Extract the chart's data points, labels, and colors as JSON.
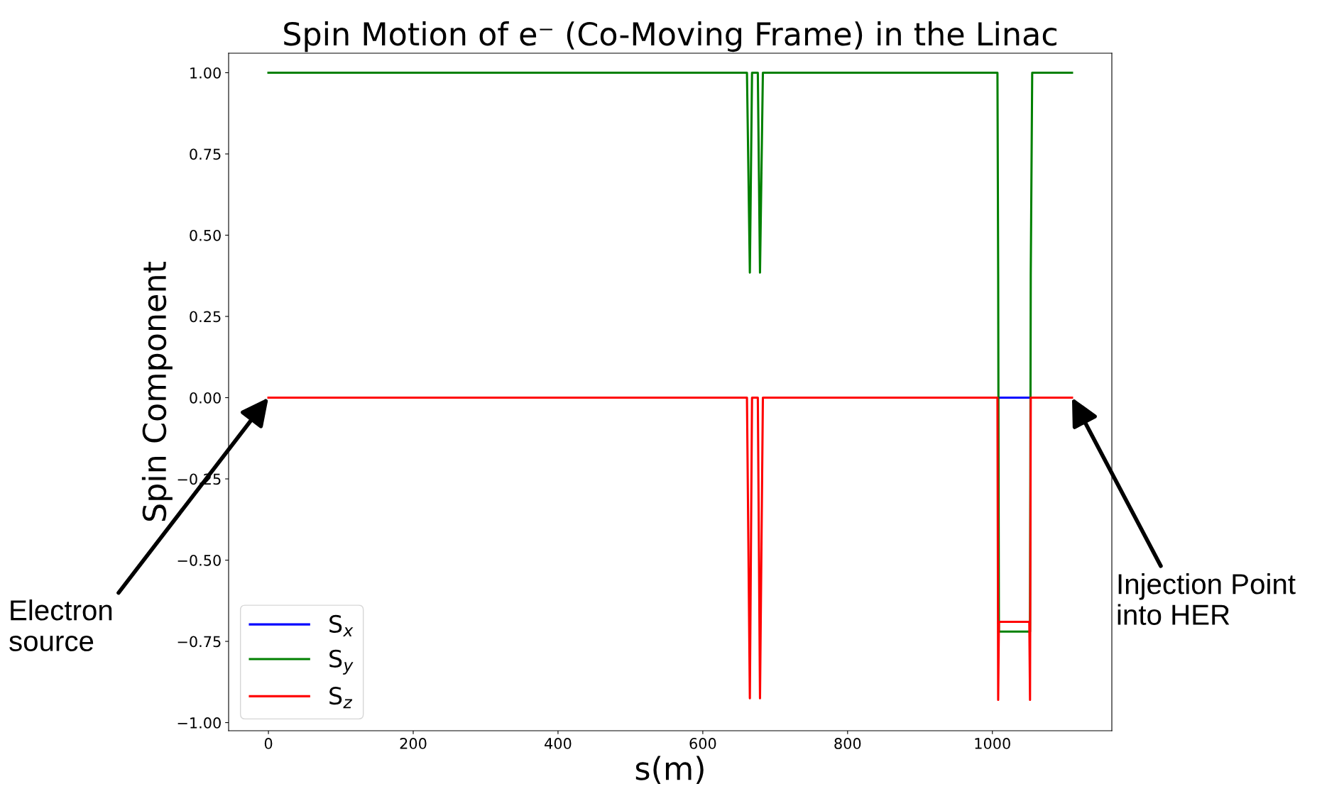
{
  "chart_data": {
    "type": "line",
    "title": "Spin Motion of e⁻ (Co-Moving Frame) in the Linac",
    "xlabel": "s(m)",
    "ylabel": "Spin Component",
    "x": [
      0,
      661,
      665,
      668,
      676,
      679,
      683,
      1007,
      1008,
      1009,
      1051,
      1052,
      1053,
      1055,
      1110
    ],
    "series": [
      {
        "name": "S$_{x}$",
        "color": "#0000ff",
        "values": [
          null,
          null,
          null,
          null,
          null,
          null,
          null,
          null,
          null,
          0,
          0,
          null,
          null,
          null,
          null
        ]
      },
      {
        "name": "S$_{y}$",
        "color": "#008000",
        "values": [
          1,
          1,
          0.385,
          1,
          1,
          0.385,
          1,
          1,
          0.38,
          -0.72,
          -0.72,
          -0.72,
          0.38,
          1,
          1
        ]
      },
      {
        "name": "S$_{z}$",
        "color": "#ff0000",
        "values": [
          0,
          0,
          -0.925,
          0,
          0,
          -0.925,
          0,
          0,
          -0.93,
          -0.69,
          -0.69,
          -0.93,
          0,
          0,
          0
        ]
      }
    ],
    "xlim": [
      -55,
      1165
    ],
    "ylim": [
      -1.025,
      1.06
    ],
    "xticks": [
      0,
      200,
      400,
      600,
      800,
      1000
    ],
    "yticks": [
      {
        "value": -1,
        "label": "−1.00"
      },
      {
        "value": -0.75,
        "label": "−0.75"
      },
      {
        "value": -0.5,
        "label": "−0.50"
      },
      {
        "value": -0.25,
        "label": "−0.25"
      },
      {
        "value": 0,
        "label": "0.00"
      },
      {
        "value": 0.25,
        "label": "0.25"
      },
      {
        "value": 0.5,
        "label": "0.50"
      },
      {
        "value": 0.75,
        "label": "0.75"
      },
      {
        "value": 1,
        "label": "1.00"
      }
    ],
    "grid": false,
    "legend": "bottom left",
    "annotations": [
      {
        "text": "Electron\nsource",
        "x": 0,
        "y": 0
      },
      {
        "text": "Injection Point\ninto HER",
        "x": 1110,
        "y": 0
      }
    ]
  }
}
